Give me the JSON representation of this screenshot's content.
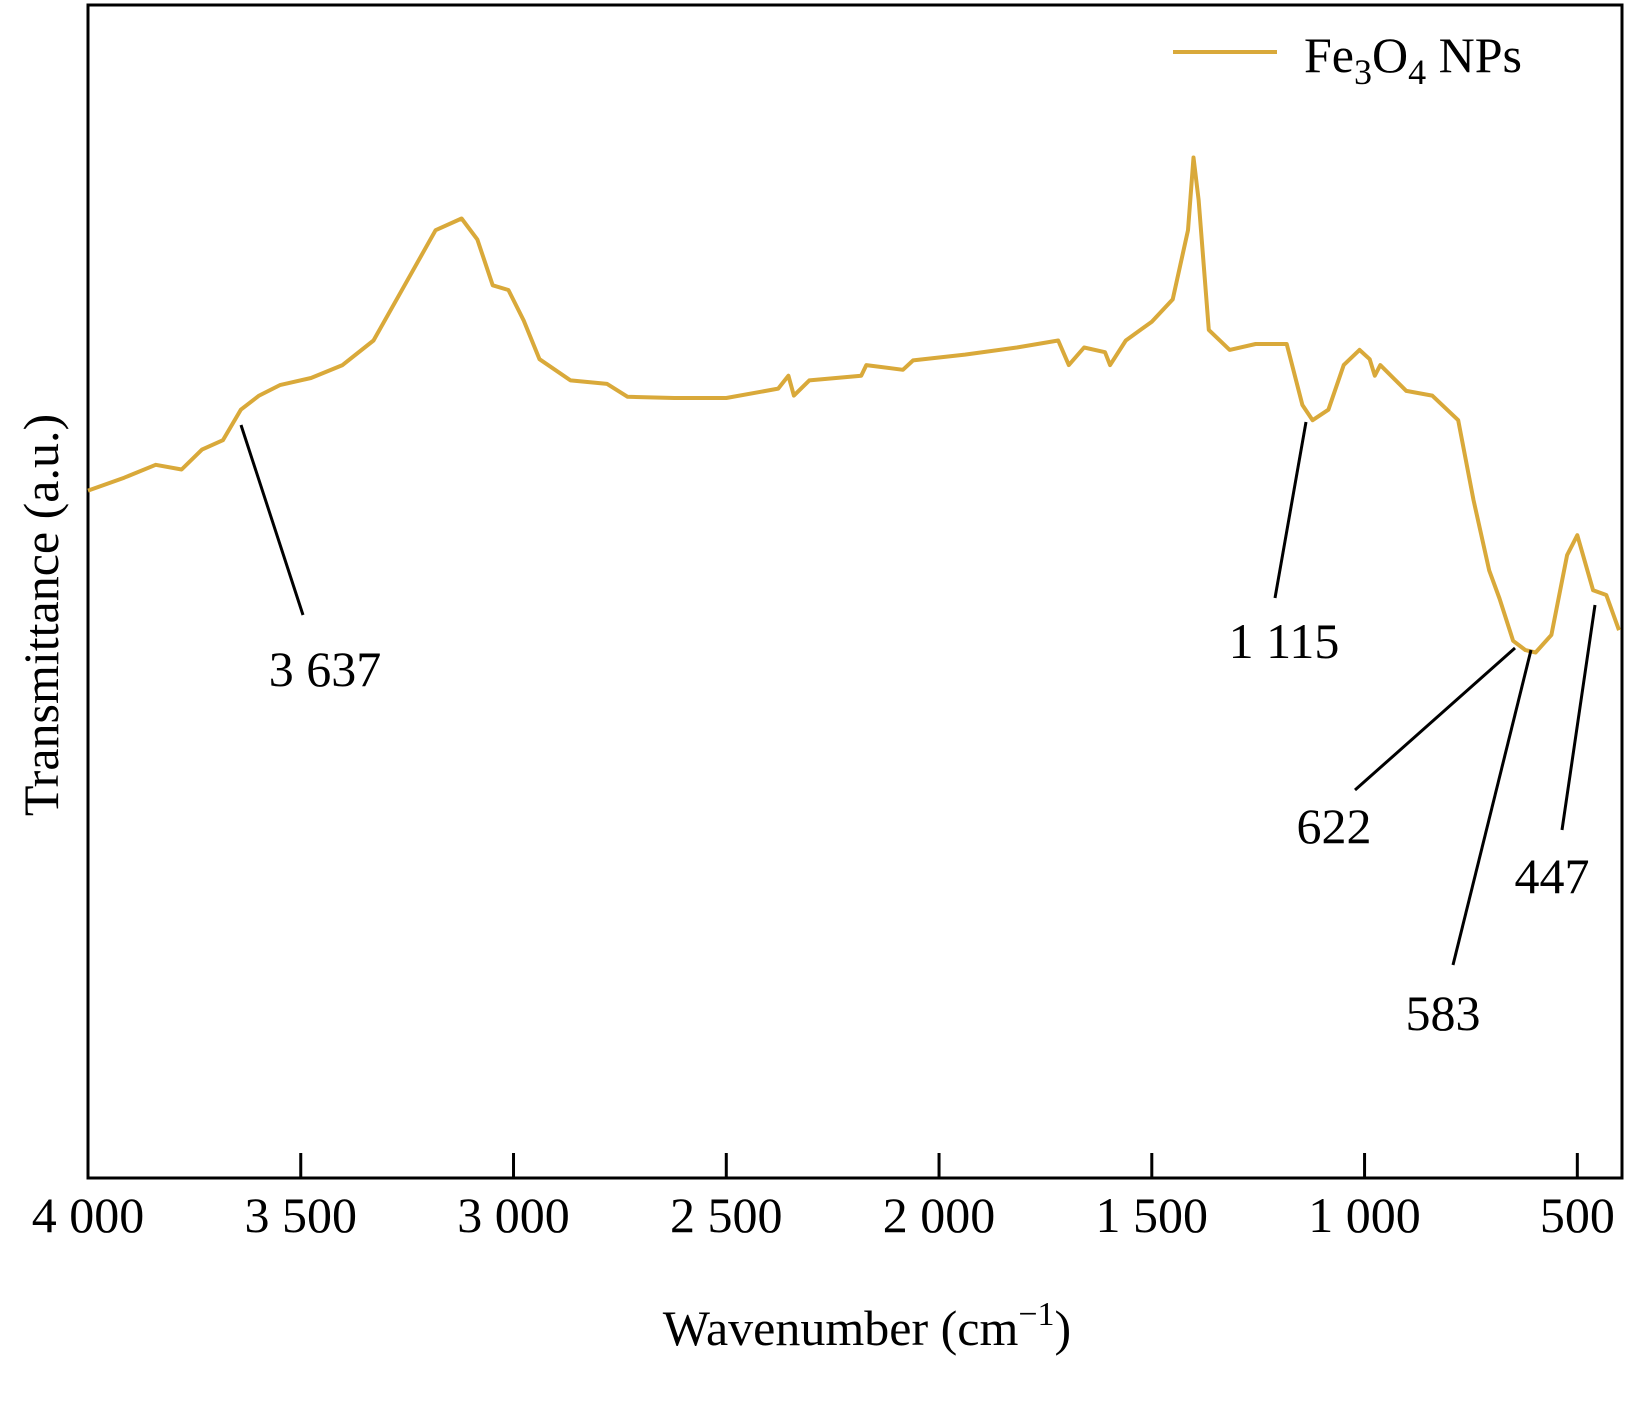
{
  "chart_data": {
    "type": "line",
    "xlabel": "Wavenumber (cm−1)",
    "ylabel": "Transmittance (a.u.)",
    "xlim": [
      4000,
      395
    ],
    "ylim": [
      0,
      100
    ],
    "xticks": [
      {
        "value": 4000,
        "label": "4 000"
      },
      {
        "value": 3500,
        "label": "3 500"
      },
      {
        "value": 3000,
        "label": "3 000"
      },
      {
        "value": 2500,
        "label": "2 500"
      },
      {
        "value": 2000,
        "label": "2 000"
      },
      {
        "value": 1500,
        "label": "1 500"
      },
      {
        "value": 1000,
        "label": "1 000"
      },
      500
    ],
    "legend": "top-right",
    "x": [
      4000,
      3915,
      3841,
      3780,
      3732,
      3683,
      3641,
      3598,
      3549,
      3476,
      3402,
      3329,
      3256,
      3183,
      3122,
      3085,
      3049,
      3012,
      2976,
      2939,
      2866,
      2780,
      2732,
      2622,
      2500,
      2378,
      2354,
      2341,
      2305,
      2183,
      2171,
      2085,
      2061,
      1939,
      1817,
      1720,
      1695,
      1659,
      1610,
      1598,
      1561,
      1500,
      1451,
      1415,
      1402,
      1390,
      1366,
      1317,
      1256,
      1183,
      1146,
      1122,
      1085,
      1049,
      1012,
      988,
      976,
      963,
      902,
      841,
      780,
      744,
      707,
      683,
      651,
      622,
      598,
      561,
      524,
      500,
      463,
      432,
      402
    ],
    "series": [
      {
        "name": "Fe3O4 NPs",
        "color": "#d9a93a",
        "values": [
          58.6,
          59.7,
          60.8,
          60.4,
          62.1,
          62.9,
          65.5,
          66.7,
          67.6,
          68.2,
          69.3,
          71.4,
          76.1,
          80.8,
          81.8,
          80.0,
          76.1,
          75.7,
          73.1,
          69.8,
          68.0,
          67.7,
          66.6,
          66.5,
          66.5,
          67.3,
          68.4,
          66.7,
          68.0,
          68.4,
          69.3,
          68.9,
          69.7,
          70.2,
          70.8,
          71.4,
          69.3,
          70.8,
          70.4,
          69.3,
          71.4,
          73.0,
          74.9,
          80.8,
          87.0,
          83.4,
          72.3,
          70.6,
          71.1,
          71.1,
          65.9,
          64.6,
          65.5,
          69.3,
          70.6,
          69.8,
          68.4,
          69.3,
          67.1,
          66.7,
          64.6,
          57.8,
          51.8,
          49.4,
          45.8,
          45.0,
          44.8,
          46.3,
          53.1,
          54.8,
          50.1,
          49.7,
          46.7
        ]
      }
    ],
    "annotations": [
      {
        "text": "3 637"
      },
      {
        "text": "1 115"
      },
      {
        "text": "622"
      },
      {
        "text": "583"
      },
      {
        "text": "447"
      }
    ]
  }
}
